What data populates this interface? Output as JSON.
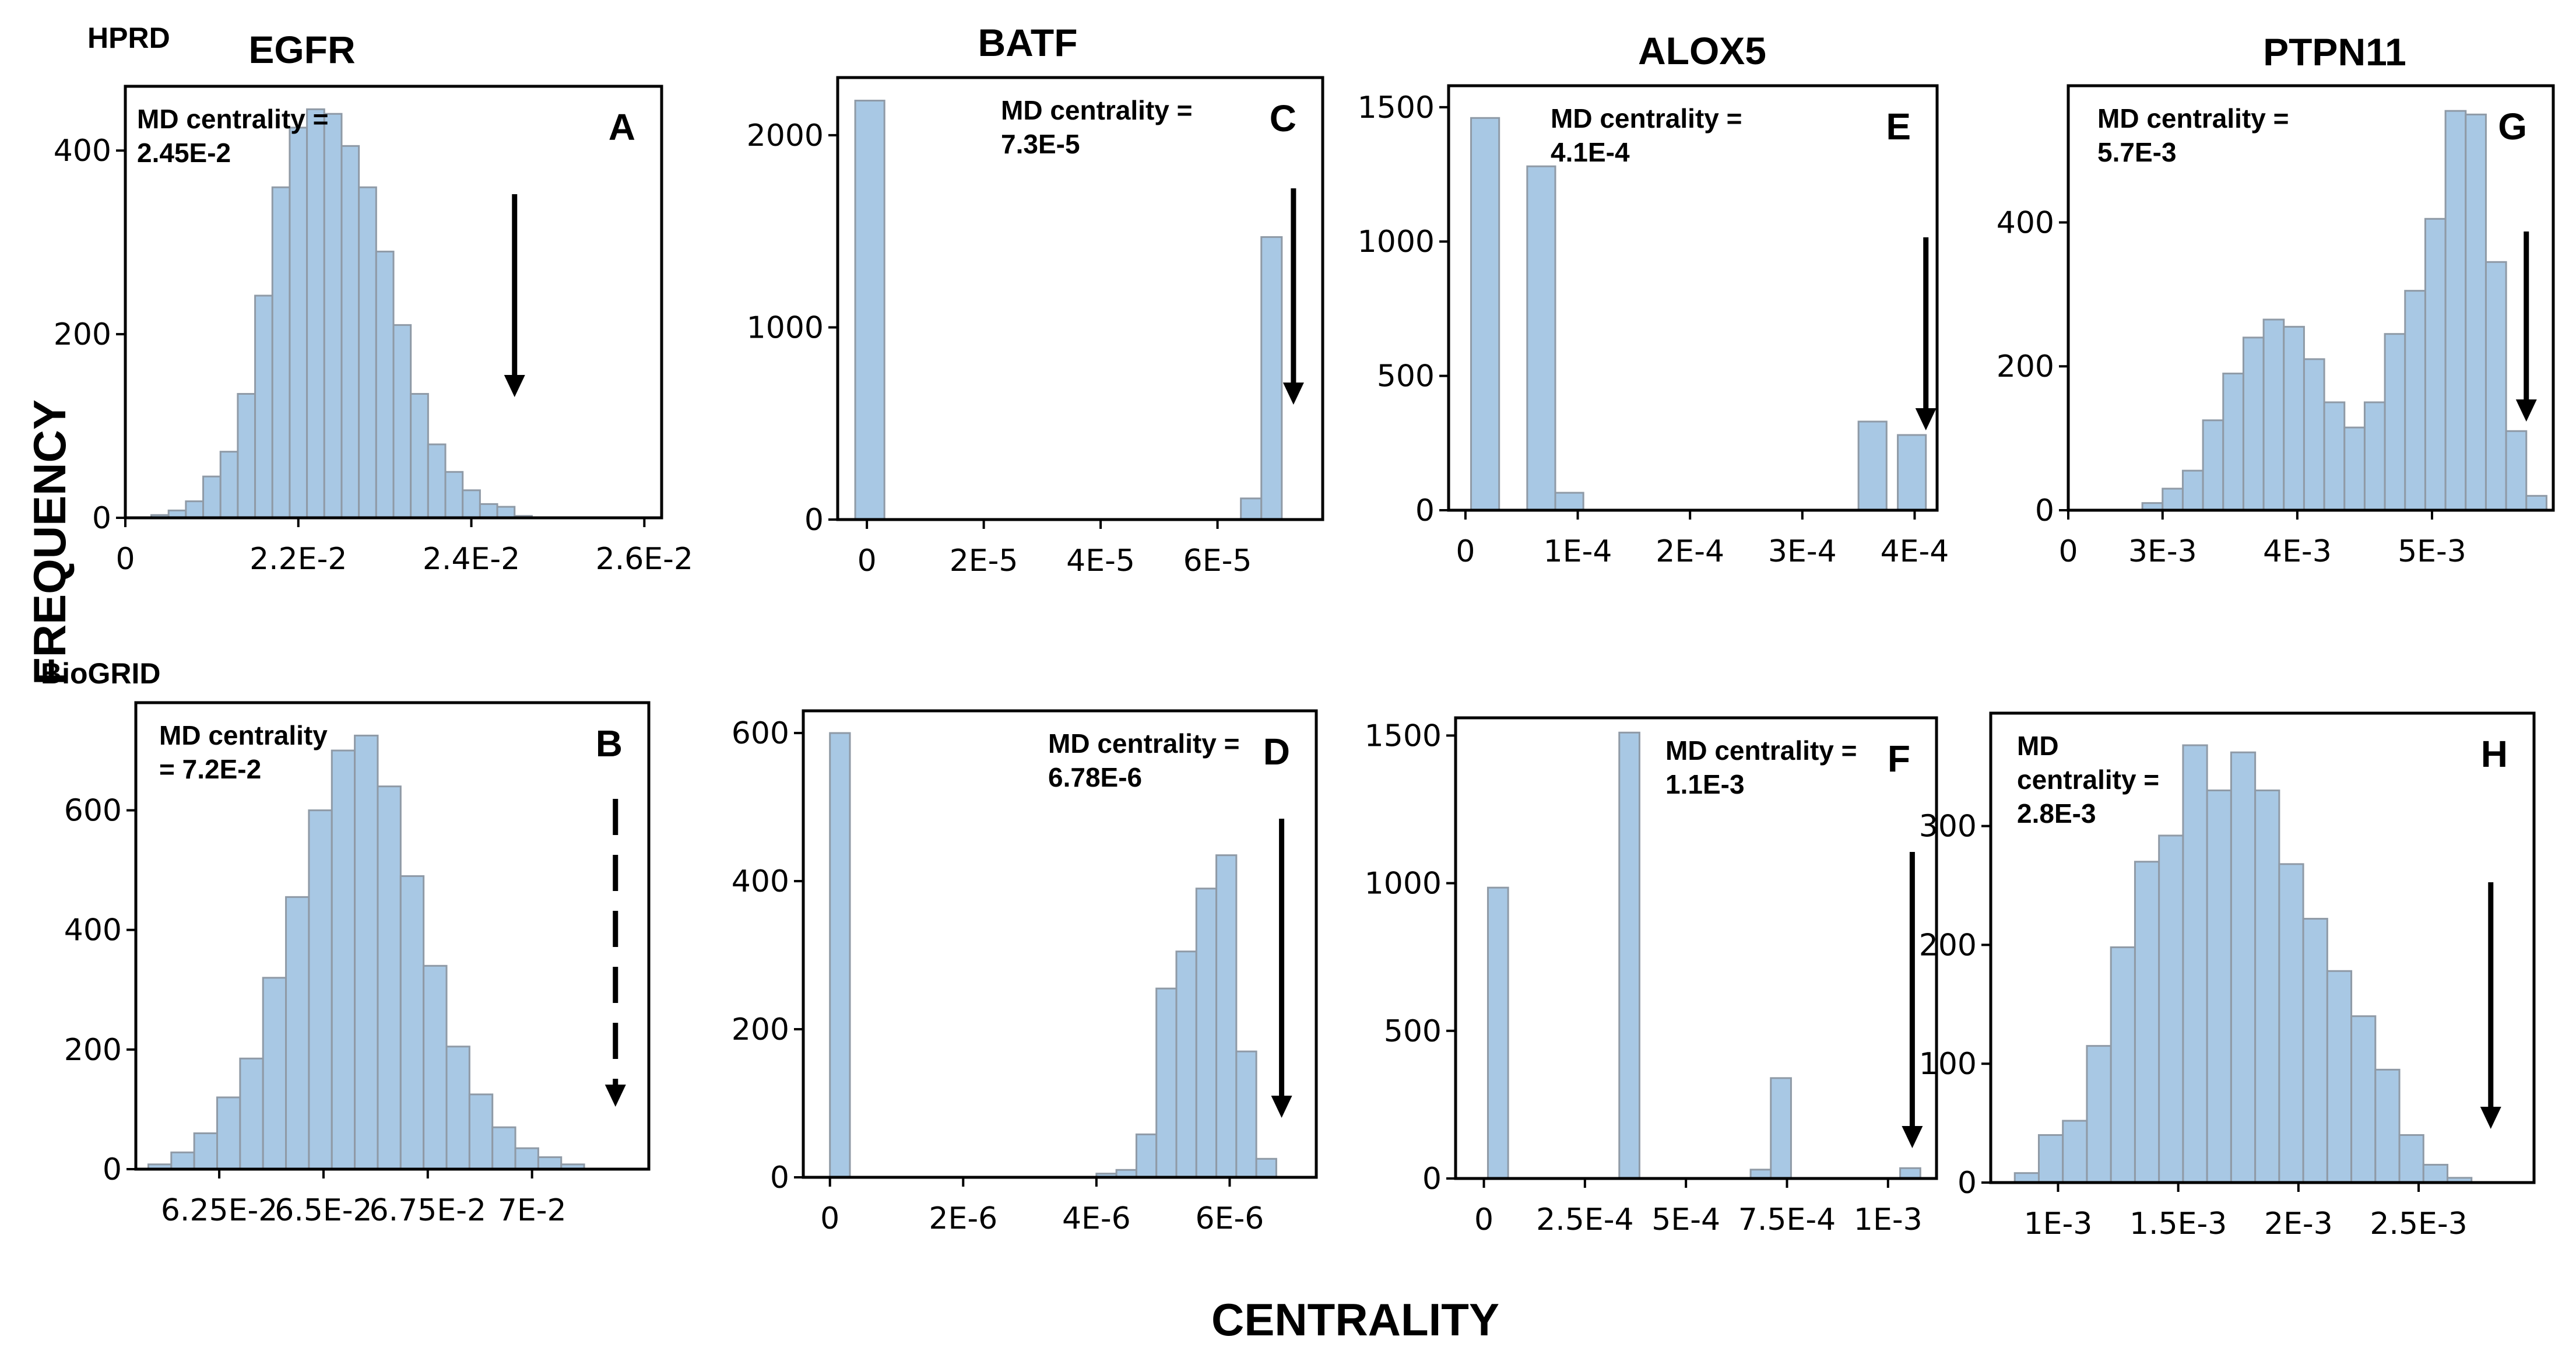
{
  "figure": {
    "y_label": "FREQUENCY",
    "x_label": "CENTRALITY",
    "rows": [
      {
        "label": "HPRD"
      },
      {
        "label": "BioGRID"
      }
    ],
    "colors": {
      "bar_fill": "#a8c8e4",
      "bar_edge": "#8f9aa6",
      "arrow": "#000000",
      "frame": "#000000"
    }
  },
  "chart_data": [
    {
      "id": "A",
      "type": "bar",
      "gene": "EGFR",
      "database": "HPRD",
      "annotation_lines": [
        "MD centrality =",
        "2.45E-2"
      ],
      "xlim": [
        0.02,
        0.0262
      ],
      "ylim": [
        0,
        470
      ],
      "bin_start": 0.0203,
      "bin_width": 0.0002,
      "values": [
        3,
        8,
        18,
        45,
        72,
        135,
        242,
        360,
        425,
        445,
        440,
        405,
        360,
        290,
        210,
        135,
        80,
        50,
        30,
        15,
        12,
        2
      ],
      "x_ticks": [
        {
          "v": 0.02,
          "label": "0"
        },
        {
          "v": 0.022,
          "label": "2.2E-2"
        },
        {
          "v": 0.024,
          "label": "2.4E-2"
        },
        {
          "v": 0.026,
          "label": "2.6E-2"
        }
      ],
      "y_ticks": [
        {
          "v": 0,
          "label": "0"
        },
        {
          "v": 200,
          "label": "200"
        },
        {
          "v": 400,
          "label": "400"
        }
      ],
      "arrow": {
        "x": 0.0245,
        "style": "solid"
      }
    },
    {
      "id": "C",
      "type": "bar",
      "gene": "BATF",
      "database": "HPRD",
      "annotation_lines": [
        "MD centrality =",
        "7.3E-5"
      ],
      "xlim": [
        -5e-06,
        7.8e-05
      ],
      "ylim": [
        0,
        2300
      ],
      "bin_start": -2e-06,
      "bin_width": 5e-06,
      "bars": [
        {
          "x": -2e-06,
          "w": 5e-06,
          "v": 2180
        },
        {
          "x": 6.4e-05,
          "w": 3.5e-06,
          "v": 110
        },
        {
          "x": 6.75e-05,
          "w": 3.5e-06,
          "v": 1470
        }
      ],
      "x_ticks": [
        {
          "v": 0,
          "label": "0"
        },
        {
          "v": 2e-05,
          "label": "2E-5"
        },
        {
          "v": 4e-05,
          "label": "4E-5"
        },
        {
          "v": 6e-05,
          "label": "6E-5"
        }
      ],
      "y_ticks": [
        {
          "v": 0,
          "label": "0"
        },
        {
          "v": 1000,
          "label": "1000"
        },
        {
          "v": 2000,
          "label": "2000"
        }
      ],
      "arrow": {
        "x": 7.3e-05,
        "style": "solid"
      }
    },
    {
      "id": "E",
      "type": "bar",
      "gene": "ALOX5",
      "database": "HPRD",
      "annotation_lines": [
        "MD centrality =",
        "4.1E-4"
      ],
      "xlim": [
        -1.5e-05,
        0.00042
      ],
      "ylim": [
        0,
        1580
      ],
      "bars": [
        {
          "x": 5e-06,
          "w": 2.5e-05,
          "v": 1460
        },
        {
          "x": 5.5e-05,
          "w": 2.5e-05,
          "v": 1280
        },
        {
          "x": 8e-05,
          "w": 2.5e-05,
          "v": 65
        },
        {
          "x": 0.00035,
          "w": 2.5e-05,
          "v": 330
        },
        {
          "x": 0.000385,
          "w": 2.5e-05,
          "v": 280
        }
      ],
      "x_ticks": [
        {
          "v": 0,
          "label": "0"
        },
        {
          "v": 0.0001,
          "label": "1E-4"
        },
        {
          "v": 0.0002,
          "label": "2E-4"
        },
        {
          "v": 0.0003,
          "label": "3E-4"
        },
        {
          "v": 0.0004,
          "label": "4E-4"
        }
      ],
      "y_ticks": [
        {
          "v": 0,
          "label": "0"
        },
        {
          "v": 500,
          "label": "500"
        },
        {
          "v": 1000,
          "label": "1000"
        },
        {
          "v": 1500,
          "label": "1500"
        }
      ],
      "arrow": {
        "x": 0.00041,
        "style": "solid"
      }
    },
    {
      "id": "G",
      "type": "bar",
      "gene": "PTPN11",
      "database": "HPRD",
      "annotation_lines": [
        "MD centrality =",
        "5.7E-3"
      ],
      "xlim": [
        0.0023,
        0.0059
      ],
      "ylim": [
        0,
        590
      ],
      "bin_start": 0.00255,
      "bin_width": 0.00015,
      "values": [
        0,
        0,
        10,
        30,
        55,
        125,
        190,
        240,
        265,
        255,
        210,
        150,
        115,
        150,
        245,
        305,
        405,
        555,
        550,
        345,
        110,
        20
      ],
      "x_ticks": [
        {
          "v": 0.0023,
          "label": "0"
        },
        {
          "v": 0.003,
          "label": "3E-3"
        },
        {
          "v": 0.004,
          "label": "4E-3"
        },
        {
          "v": 0.005,
          "label": "5E-3"
        }
      ],
      "y_ticks": [
        {
          "v": 0,
          "label": "0"
        },
        {
          "v": 200,
          "label": "200"
        },
        {
          "v": 400,
          "label": "400"
        }
      ],
      "arrow": {
        "x": 0.0057,
        "style": "solid"
      }
    },
    {
      "id": "B",
      "type": "bar",
      "gene": "EGFR",
      "database": "BioGRID",
      "annotation_lines": [
        "MD centrality",
        "= 7.2E-2"
      ],
      "xlim": [
        0.0605,
        0.0728
      ],
      "ylim": [
        0,
        780
      ],
      "bin_start": 0.0608,
      "bin_width": 0.00055,
      "values": [
        8,
        28,
        60,
        120,
        185,
        320,
        455,
        600,
        700,
        725,
        640,
        490,
        340,
        205,
        125,
        70,
        35,
        20,
        8
      ],
      "x_ticks": [
        {
          "v": 0.0625,
          "label": "6.25E-2"
        },
        {
          "v": 0.065,
          "label": "6.5E-2"
        },
        {
          "v": 0.0675,
          "label": "6.75E-2"
        },
        {
          "v": 0.07,
          "label": "7E-2"
        }
      ],
      "y_ticks": [
        {
          "v": 0,
          "label": "0"
        },
        {
          "v": 200,
          "label": "200"
        },
        {
          "v": 400,
          "label": "400"
        },
        {
          "v": 600,
          "label": "600"
        }
      ],
      "arrow": {
        "x": 0.072,
        "style": "dashed"
      }
    },
    {
      "id": "D",
      "type": "bar",
      "gene": "BATF",
      "database": "BioGRID",
      "annotation_lines": [
        "MD centrality =",
        "6.78E-6"
      ],
      "xlim": [
        -4e-07,
        7.3e-06
      ],
      "ylim": [
        0,
        630
      ],
      "bars": [
        {
          "x": 0,
          "w": 3e-07,
          "v": 600
        },
        {
          "x": 4e-06,
          "w": 3e-07,
          "v": 5
        },
        {
          "x": 4.3e-06,
          "w": 3e-07,
          "v": 10
        },
        {
          "x": 4.6e-06,
          "w": 3e-07,
          "v": 58
        },
        {
          "x": 4.9e-06,
          "w": 3e-07,
          "v": 255
        },
        {
          "x": 5.2e-06,
          "w": 3e-07,
          "v": 305
        },
        {
          "x": 5.5e-06,
          "w": 3e-07,
          "v": 390
        },
        {
          "x": 5.8e-06,
          "w": 3e-07,
          "v": 435
        },
        {
          "x": 6.1e-06,
          "w": 3e-07,
          "v": 170
        },
        {
          "x": 6.4e-06,
          "w": 3e-07,
          "v": 25
        }
      ],
      "x_ticks": [
        {
          "v": 0,
          "label": "0"
        },
        {
          "v": 2e-06,
          "label": "2E-6"
        },
        {
          "v": 4e-06,
          "label": "4E-6"
        },
        {
          "v": 6e-06,
          "label": "6E-6"
        }
      ],
      "y_ticks": [
        {
          "v": 0,
          "label": "0"
        },
        {
          "v": 200,
          "label": "200"
        },
        {
          "v": 400,
          "label": "400"
        },
        {
          "v": 600,
          "label": "600"
        }
      ],
      "arrow": {
        "x": 6.78e-06,
        "style": "solid"
      }
    },
    {
      "id": "F",
      "type": "bar",
      "gene": "ALOX5",
      "database": "BioGRID",
      "annotation_lines": [
        "MD centrality =",
        "1.1E-3"
      ],
      "xlim": [
        -7e-05,
        0.00112
      ],
      "ylim": [
        0,
        1560
      ],
      "bars": [
        {
          "x": 1e-05,
          "w": 5e-05,
          "v": 985
        },
        {
          "x": 0.000335,
          "w": 5e-05,
          "v": 1510
        },
        {
          "x": 0.00066,
          "w": 5e-05,
          "v": 30
        },
        {
          "x": 0.00071,
          "w": 5e-05,
          "v": 340
        },
        {
          "x": 0.00103,
          "w": 5e-05,
          "v": 35
        }
      ],
      "x_ticks": [
        {
          "v": 0,
          "label": "0"
        },
        {
          "v": 0.00025,
          "label": "2.5E-4"
        },
        {
          "v": 0.0005,
          "label": "5E-4"
        },
        {
          "v": 0.00075,
          "label": "7.5E-4"
        },
        {
          "v": 0.001,
          "label": "1E-3"
        }
      ],
      "y_ticks": [
        {
          "v": 0,
          "label": "0"
        },
        {
          "v": 500,
          "label": "500"
        },
        {
          "v": 1000,
          "label": "1000"
        },
        {
          "v": 1500,
          "label": "1500"
        }
      ],
      "arrow": {
        "x": 0.00106,
        "style": "solid"
      }
    },
    {
      "id": "H",
      "type": "bar",
      "gene": "PTPN11",
      "database": "BioGRID",
      "annotation_lines": [
        "MD",
        "centrality =",
        "2.8E-3"
      ],
      "xlim": [
        0.00072,
        0.00298
      ],
      "ylim": [
        0,
        395
      ],
      "bin_start": 0.00082,
      "bin_width": 0.0001,
      "values": [
        8,
        40,
        52,
        115,
        198,
        270,
        292,
        368,
        330,
        362,
        330,
        268,
        222,
        178,
        140,
        95,
        40,
        15,
        4
      ],
      "x_ticks": [
        {
          "v": 0.001,
          "label": "1E-3"
        },
        {
          "v": 0.0015,
          "label": "1.5E-3"
        },
        {
          "v": 0.002,
          "label": "2E-3"
        },
        {
          "v": 0.0025,
          "label": "2.5E-3"
        }
      ],
      "y_ticks": [
        {
          "v": 0,
          "label": "0"
        },
        {
          "v": 100,
          "label": "100"
        },
        {
          "v": 200,
          "label": "200"
        },
        {
          "v": 300,
          "label": "300"
        }
      ],
      "arrow": {
        "x": 0.0028,
        "style": "solid"
      }
    }
  ]
}
